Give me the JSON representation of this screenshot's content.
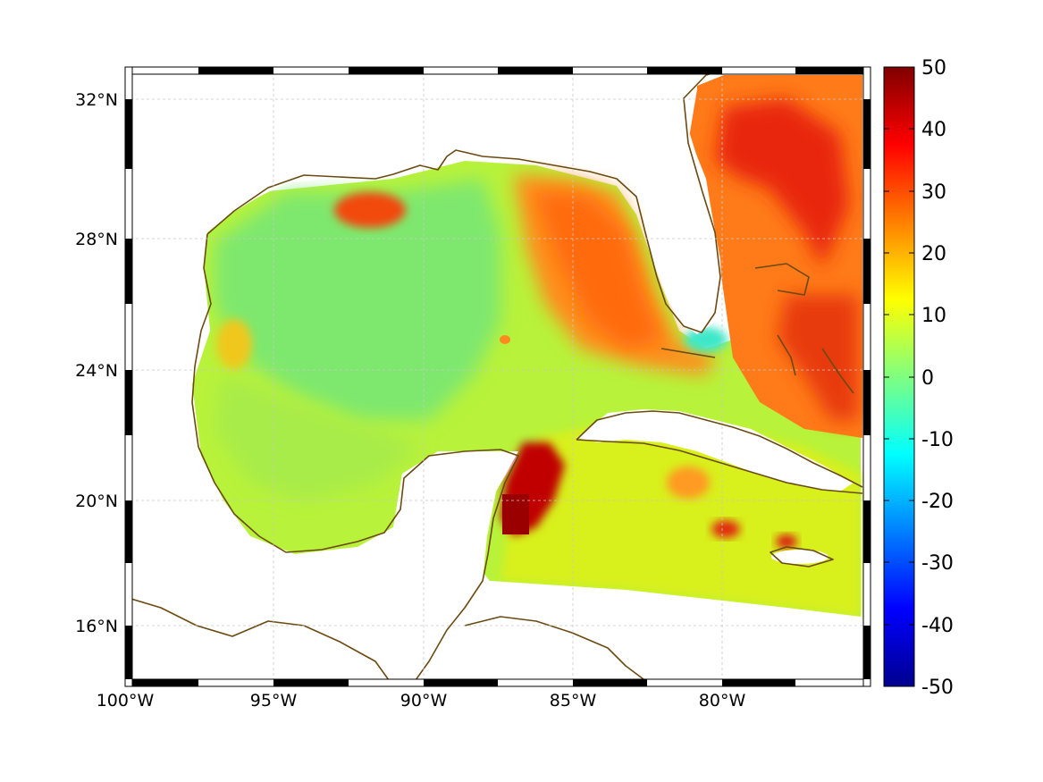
{
  "map": {
    "lon_ticks": [
      {
        "value": -100,
        "label": "100°W"
      },
      {
        "value": -95,
        "label": "95°W"
      },
      {
        "value": -90,
        "label": "90°W"
      },
      {
        "value": -85,
        "label": "85°W"
      },
      {
        "value": -80,
        "label": "80°W"
      }
    ],
    "lat_ticks": [
      {
        "value": 32,
        "label": "32°N"
      },
      {
        "value": 28,
        "label": "28°N"
      },
      {
        "value": 24,
        "label": "24°N"
      },
      {
        "value": 20,
        "label": "20°N"
      },
      {
        "value": 16,
        "label": "16°N"
      }
    ],
    "lon_range": [
      -100,
      -75
    ],
    "lat_range": [
      14.2,
      33
    ],
    "grid": true,
    "coastline_color": "#6b4a12"
  },
  "colorbar": {
    "ticks": [
      "50",
      "40",
      "30",
      "20",
      "10",
      "0",
      "-10",
      "-20",
      "-30",
      "-40",
      "-50"
    ],
    "min": -50,
    "max": 50,
    "colormap": "jet"
  }
}
